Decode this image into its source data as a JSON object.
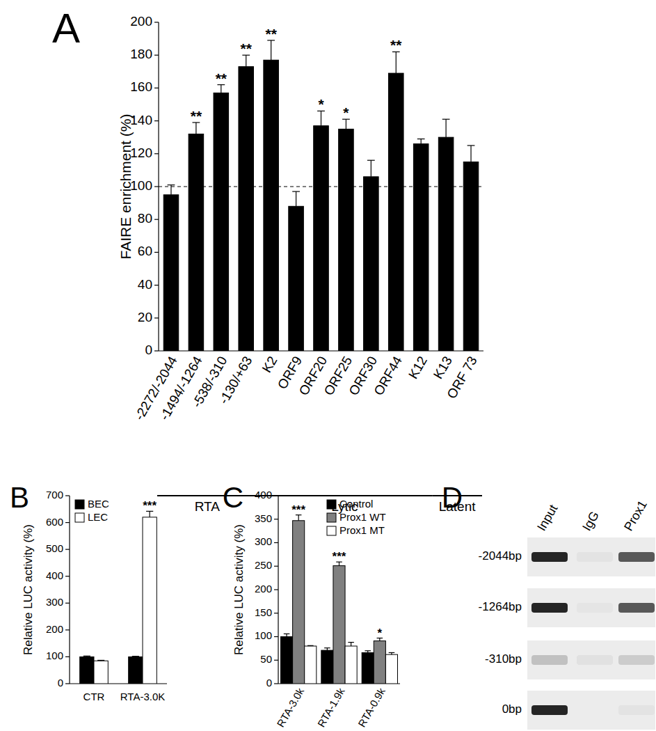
{
  "chart_data": [
    {
      "type": "bar",
      "panel": "A",
      "ylabel": "FAIRE enrichment (%)",
      "categories": [
        "-2272/-2044",
        "-1494/-1264",
        "-538/-310",
        "-130/+63",
        "K2",
        "ORF9",
        "ORF20",
        "ORF25",
        "ORF30",
        "ORF44",
        "K12",
        "K13",
        "ORF 73"
      ],
      "values": [
        95,
        132,
        157,
        173,
        177,
        88,
        137,
        135,
        106,
        169,
        126,
        130,
        115
      ],
      "errors": [
        6,
        7,
        5,
        7,
        12,
        9,
        9,
        6,
        10,
        13,
        3,
        11,
        10
      ],
      "significance": [
        "",
        "**",
        "**",
        "**",
        "**",
        "",
        "*",
        "*",
        "",
        "**",
        "",
        "",
        ""
      ],
      "color": "#000000",
      "reference_line": 100,
      "groups": [
        {
          "label": "RTA",
          "start": 0,
          "end": 3
        },
        {
          "label": "Lytic",
          "start": 4,
          "end": 10
        },
        {
          "label": "Latent",
          "start": 11,
          "end": 12
        }
      ],
      "ylim": [
        0,
        200
      ],
      "yticks": [
        0,
        20,
        40,
        60,
        80,
        100,
        120,
        140,
        160,
        180,
        200
      ]
    },
    {
      "type": "bar",
      "panel": "B",
      "ylabel": "Relative LUC activity (%)",
      "categories": [
        "CTR",
        "RTA-3.0K"
      ],
      "series": [
        {
          "name": "BEC",
          "color": "#000000",
          "values": [
            100,
            100
          ],
          "errors": [
            3,
            2
          ],
          "significance": [
            "",
            ""
          ]
        },
        {
          "name": "LEC",
          "color": "#ffffff",
          "values": [
            85,
            620
          ],
          "errors": [
            2,
            22
          ],
          "significance": [
            "",
            "***"
          ]
        }
      ],
      "legend": "top-left",
      "ylim": [
        0,
        700
      ],
      "yticks": [
        0,
        100,
        200,
        300,
        400,
        500,
        600,
        700
      ]
    },
    {
      "type": "bar",
      "panel": "C",
      "ylabel": "Relative LUC activity (%)",
      "categories": [
        "RTA-3.0k",
        "RTA-1.9k",
        "RTA-0.9k"
      ],
      "series": [
        {
          "name": "Control",
          "color": "#000000",
          "values": [
            100,
            71,
            66
          ],
          "errors": [
            6,
            5,
            4
          ],
          "significance": [
            "",
            "",
            ""
          ]
        },
        {
          "name": "Prox1 WT",
          "color": "#808080",
          "values": [
            347,
            251,
            91
          ],
          "errors": [
            12,
            8,
            6
          ],
          "significance": [
            "***",
            "***",
            "*"
          ]
        },
        {
          "name": "Prox1 MT",
          "color": "#ffffff",
          "values": [
            80,
            80,
            62
          ],
          "errors": [
            1,
            8,
            4
          ],
          "significance": [
            "",
            "",
            ""
          ]
        }
      ],
      "legend": "top-right",
      "ylim": [
        0,
        400
      ],
      "yticks": [
        0,
        50,
        100,
        150,
        200,
        250,
        300,
        350,
        400
      ]
    }
  ],
  "gel": {
    "panel": "D",
    "columns": [
      "Input",
      "IgG",
      "Prox1"
    ],
    "rows": [
      {
        "label": "-2044bp",
        "intensity": [
          0.95,
          0.04,
          0.7
        ]
      },
      {
        "label": "-1264bp",
        "intensity": [
          0.95,
          0.03,
          0.7
        ]
      },
      {
        "label": "-310bp",
        "intensity": [
          0.2,
          0.05,
          0.15
        ]
      },
      {
        "label": "0bp",
        "intensity": [
          0.95,
          0.0,
          0.04
        ]
      }
    ]
  }
}
